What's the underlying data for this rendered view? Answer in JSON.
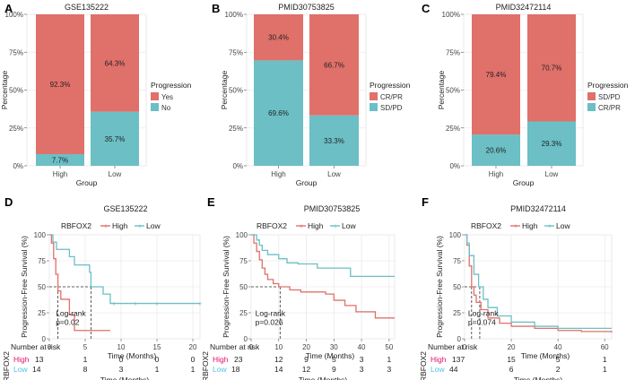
{
  "colors": {
    "red": "#E0706A",
    "teal": "#6BBFC5",
    "high": "#E0106E",
    "low": "#4FC3E0",
    "axis": "#555555",
    "grid": "#EBEBEB",
    "text": "#222222"
  },
  "chart_data": [
    {
      "panel": "A",
      "type": "bar",
      "stacked": true,
      "title": "GSE135222",
      "xlabel": "Group",
      "ylabel": "Percentage",
      "categories": [
        "High",
        "Low"
      ],
      "yticks": [
        "0%",
        "25%",
        "50%",
        "75%",
        "100%"
      ],
      "ylim": [
        0,
        100
      ],
      "legend_title": "Progression",
      "legend_position": "right",
      "series": [
        {
          "name": "No",
          "color": "teal",
          "values": [
            7.7,
            35.7
          ],
          "labels": [
            "7.7%",
            "35.7%"
          ]
        },
        {
          "name": "Yes",
          "color": "red",
          "values": [
            92.3,
            64.3
          ],
          "labels": [
            "92.3%",
            "64.3%"
          ]
        }
      ],
      "legend_order": [
        "Yes",
        "No"
      ]
    },
    {
      "panel": "B",
      "type": "bar",
      "stacked": true,
      "title": "PMID30753825",
      "xlabel": "Group",
      "ylabel": "Percentage",
      "categories": [
        "High",
        "Low"
      ],
      "yticks": [
        "0%",
        "25%",
        "50%",
        "75%",
        "100%"
      ],
      "ylim": [
        0,
        100
      ],
      "legend_title": "Progression",
      "legend_position": "right",
      "series": [
        {
          "name": "SD/PD",
          "color": "teal",
          "values": [
            69.6,
            33.3
          ],
          "labels": [
            "69.6%",
            "33.3%"
          ]
        },
        {
          "name": "CR/PR",
          "color": "red",
          "values": [
            30.4,
            66.7
          ],
          "labels": [
            "30.4%",
            "66.7%"
          ]
        }
      ],
      "legend_order": [
        "CR/PR",
        "SD/PD"
      ]
    },
    {
      "panel": "C",
      "type": "bar",
      "stacked": true,
      "title": "PMID32472114",
      "xlabel": "Group",
      "ylabel": "Percentage",
      "categories": [
        "High",
        "Low"
      ],
      "yticks": [
        "0%",
        "25%",
        "50%",
        "75%",
        "100%"
      ],
      "ylim": [
        0,
        100
      ],
      "legend_title": "Progression",
      "legend_position": "right",
      "series": [
        {
          "name": "CR/PR",
          "color": "teal",
          "values": [
            20.6,
            29.3
          ],
          "labels": [
            "20.6%",
            "29.3%"
          ]
        },
        {
          "name": "SD/PD",
          "color": "red",
          "values": [
            79.4,
            70.7
          ],
          "labels": [
            "79.4%",
            "70.7%"
          ]
        }
      ],
      "legend_order": [
        "SD/PD",
        "CR/PR"
      ]
    },
    {
      "panel": "D",
      "type": "line",
      "title": "GSE135222",
      "ylabel": "Progression-Free Survival (%)",
      "xlabel": "Time (Months)",
      "xlim": [
        0,
        21
      ],
      "xticks": [
        0,
        5,
        10,
        15,
        20
      ],
      "ylim": [
        0,
        100
      ],
      "yticks": [
        0,
        25,
        50,
        75,
        100
      ],
      "legend_title": "RBFOX2",
      "legend_items": [
        "High",
        "Low"
      ],
      "annotation": {
        "line1": "Log-rank",
        "line2": "p=0.02",
        "x": 0.9,
        "y": 22
      },
      "median_lines": {
        "y": 50,
        "x": [
          1.2,
          5.8
        ]
      },
      "series": [
        {
          "name": "High",
          "color": "red",
          "points": [
            [
              0,
              100
            ],
            [
              0.3,
              92
            ],
            [
              0.6,
              77
            ],
            [
              0.9,
              62
            ],
            [
              1.2,
              46
            ],
            [
              1.6,
              38
            ],
            [
              2.5,
              38
            ],
            [
              2.8,
              23
            ],
            [
              3.5,
              8
            ],
            [
              8.5,
              8
            ]
          ],
          "censor": []
        },
        {
          "name": "Low",
          "color": "teal",
          "points": [
            [
              0,
              100
            ],
            [
              0.5,
              93
            ],
            [
              1.0,
              86
            ],
            [
              2.8,
              79
            ],
            [
              3.5,
              71
            ],
            [
              5.6,
              64
            ],
            [
              5.8,
              50
            ],
            [
              7.5,
              43
            ],
            [
              8.5,
              34
            ],
            [
              21,
              34
            ]
          ],
          "censor": [
            9,
            12,
            15,
            21
          ]
        }
      ],
      "risk_table": {
        "title": "Number at risk",
        "ylabel": "RBFOX2",
        "xlabel": "Time (Months)",
        "times": [
          0,
          5,
          10,
          15,
          20
        ],
        "rows": [
          {
            "label": "High",
            "color": "high",
            "values": [
              "13",
              "1",
              "0",
              "0",
              "0"
            ]
          },
          {
            "label": "Low",
            "color": "low",
            "values": [
              "14",
              "8",
              "3",
              "1",
              "1"
            ]
          }
        ]
      }
    },
    {
      "panel": "E",
      "type": "line",
      "title": "PMID30753825",
      "ylabel": "Progression-Free Survival (%)",
      "xlabel": "Time (Months)",
      "xlim": [
        0,
        52
      ],
      "xticks": [
        0,
        10,
        20,
        30,
        40,
        50
      ],
      "ylim": [
        0,
        100
      ],
      "yticks": [
        0,
        25,
        50,
        75,
        100
      ],
      "legend_title": "RBFOX2",
      "legend_items": [
        "High",
        "Low"
      ],
      "annotation": {
        "line1": "Log-rank",
        "line2": "p=0.026",
        "x": 1.5,
        "y": 22
      },
      "median_lines": {
        "y": 50,
        "x": [
          10.5
        ]
      },
      "series": [
        {
          "name": "High",
          "color": "red",
          "points": [
            [
              0,
              100
            ],
            [
              1,
              92
            ],
            [
              2,
              84
            ],
            [
              3,
              76
            ],
            [
              4,
              68
            ],
            [
              5,
              62
            ],
            [
              6,
              57
            ],
            [
              8,
              53
            ],
            [
              10,
              50
            ],
            [
              14,
              47
            ],
            [
              18,
              45
            ],
            [
              27,
              43
            ],
            [
              30,
              37
            ],
            [
              34,
              32
            ],
            [
              38,
              26
            ],
            [
              45,
              20
            ],
            [
              52,
              20
            ]
          ],
          "censor": []
        },
        {
          "name": "Low",
          "color": "teal",
          "points": [
            [
              0,
              100
            ],
            [
              2,
              95
            ],
            [
              3,
              90
            ],
            [
              4,
              85
            ],
            [
              6,
              81
            ],
            [
              10,
              77
            ],
            [
              13,
              73
            ],
            [
              17,
              72
            ],
            [
              24,
              68
            ],
            [
              36,
              60
            ],
            [
              52,
              60
            ]
          ],
          "censor": []
        }
      ],
      "risk_table": {
        "title": "Number at risk",
        "ylabel": "RBFOX2",
        "xlabel": "Time (Months)",
        "times": [
          0,
          10,
          20,
          30,
          40,
          50
        ],
        "rows": [
          {
            "label": "High",
            "color": "high",
            "values": [
              "23",
              "12",
              "9",
              "5",
              "3",
              "1"
            ]
          },
          {
            "label": "Low",
            "color": "low",
            "values": [
              "18",
              "14",
              "12",
              "9",
              "3",
              "3"
            ]
          }
        ]
      }
    },
    {
      "panel": "F",
      "type": "line",
      "title": "PMID32472114",
      "ylabel": "Progression-Free Survival (%)",
      "xlabel": "Time (Months)",
      "xlim": [
        0,
        63
      ],
      "xticks": [
        0,
        20,
        40,
        60
      ],
      "ylim": [
        0,
        100
      ],
      "yticks": [
        0,
        25,
        50,
        75,
        100
      ],
      "legend_title": "RBFOX2",
      "legend_items": [
        "High",
        "Low"
      ],
      "annotation": {
        "line1": "Log-rank",
        "line2": "p=0.074",
        "x": 1.5,
        "y": 22
      },
      "median_lines": {
        "y": 50,
        "x": [
          3,
          6.5
        ]
      },
      "series": [
        {
          "name": "High",
          "color": "red",
          "points": [
            [
              0,
              100
            ],
            [
              1,
              90
            ],
            [
              2,
              70
            ],
            [
              3,
              50
            ],
            [
              4,
              42
            ],
            [
              5,
              35
            ],
            [
              7,
              28
            ],
            [
              10,
              20
            ],
            [
              15,
              15
            ],
            [
              20,
              12
            ],
            [
              30,
              10
            ],
            [
              40,
              8
            ],
            [
              50,
              7
            ],
            [
              63,
              6
            ]
          ],
          "censor": []
        },
        {
          "name": "Low",
          "color": "teal",
          "points": [
            [
              0,
              100
            ],
            [
              1,
              92
            ],
            [
              2,
              80
            ],
            [
              4,
              62
            ],
            [
              6,
              50
            ],
            [
              8,
              38
            ],
            [
              10,
              30
            ],
            [
              14,
              22
            ],
            [
              20,
              16
            ],
            [
              30,
              12
            ],
            [
              40,
              10
            ],
            [
              63,
              10
            ]
          ],
          "censor": []
        }
      ],
      "risk_table": {
        "title": "Number at risk",
        "ylabel": "RBFOX2",
        "xlabel": "Time (Months)",
        "times": [
          0,
          20,
          40,
          60
        ],
        "rows": [
          {
            "label": "High",
            "color": "high",
            "values": [
              "137",
              "15",
              "5",
              "1"
            ]
          },
          {
            "label": "Low",
            "color": "low",
            "values": [
              "44",
              "6",
              "2",
              "1"
            ]
          }
        ]
      }
    }
  ]
}
